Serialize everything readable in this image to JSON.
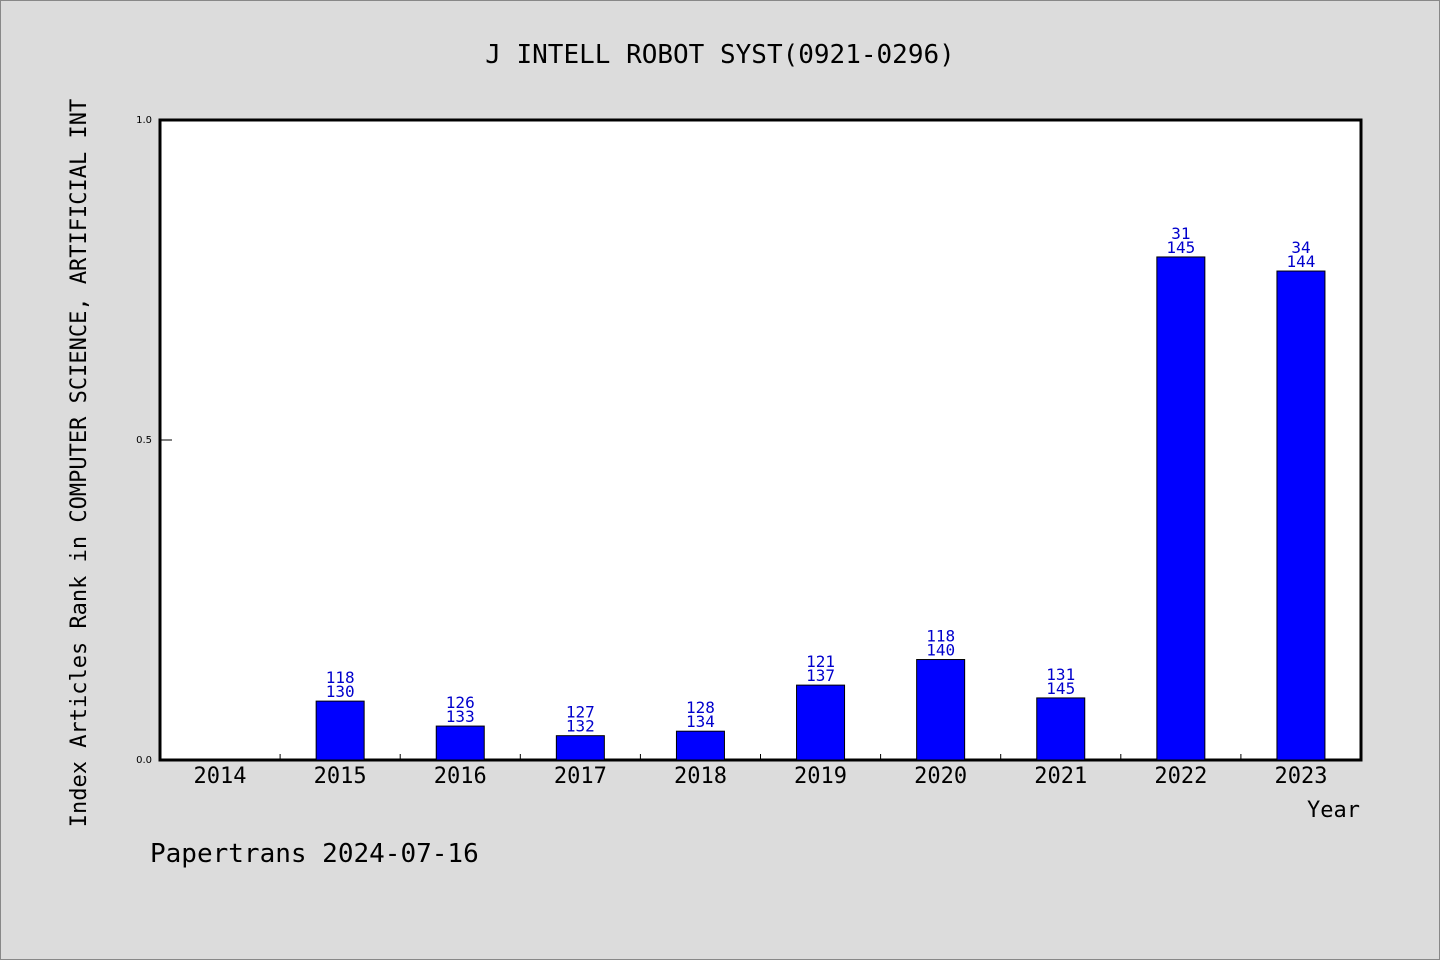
{
  "chart_data": {
    "type": "bar",
    "title": "J INTELL ROBOT SYST(0921-0296)",
    "xlabel": "Year",
    "ylabel": "Index Articles Rank in COMPUTER SCIENCE, ARTIFICIAL INT",
    "ylim": [
      0.0,
      1.0
    ],
    "yticks": [
      "0.0",
      "0.5",
      "1.0"
    ],
    "categories": [
      "2014",
      "2015",
      "2016",
      "2017",
      "2018",
      "2019",
      "2020",
      "2021",
      "2022",
      "2023"
    ],
    "values": [
      0,
      0.092,
      0.053,
      0.038,
      0.045,
      0.117,
      0.157,
      0.097,
      0.786,
      0.764
    ],
    "labels_top": [
      "",
      "118",
      "126",
      "127",
      "128",
      "121",
      "118",
      "131",
      "31",
      "34"
    ],
    "labels_bottom": [
      "",
      "130",
      "133",
      "132",
      "134",
      "137",
      "140",
      "145",
      "145",
      "144"
    ],
    "bar_color": "#0000ff",
    "label_color": "#0000cc",
    "grid": false,
    "legend": "none"
  },
  "footer": {
    "text": "Papertrans 2024-07-16"
  },
  "colors": {
    "background": "#dcdcdc",
    "plot_background": "#ffffff"
  }
}
